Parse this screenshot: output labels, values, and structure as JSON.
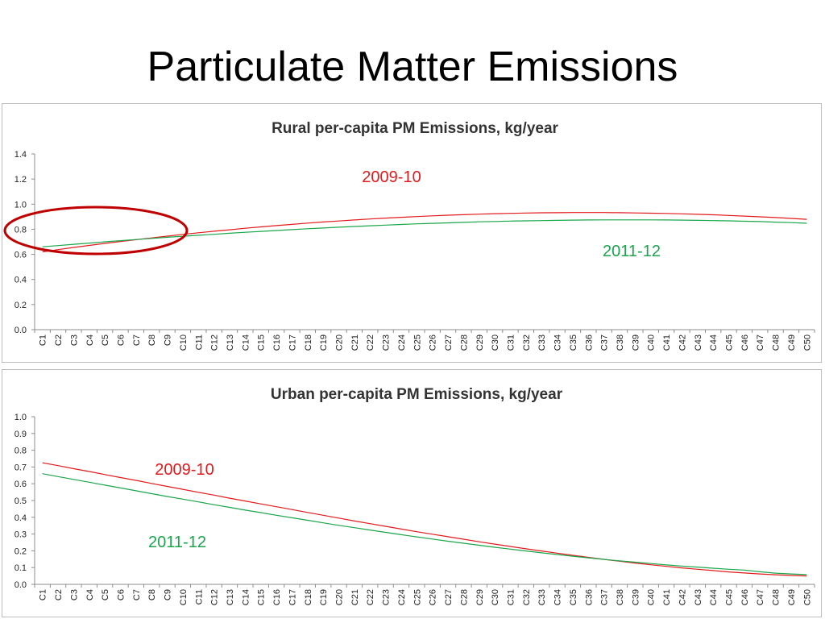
{
  "slide": {
    "title": "Particulate Matter Emissions"
  },
  "colors": {
    "series_2009_10": "#e31a1c",
    "series_2011_12": "#1aa64a",
    "highlight_ellipse": "#c00000",
    "axis": "#8c8c8c"
  },
  "chart_data": [
    {
      "type": "line",
      "title": "Rural per-capita PM Emissions, kg/year",
      "xlabel": "",
      "ylabel": "",
      "ylim": [
        0,
        1.4
      ],
      "yticks": [
        "0.0",
        "0.2",
        "0.4",
        "0.6",
        "0.8",
        "1.0",
        "1.2",
        "1.4"
      ],
      "categories": [
        "C1",
        "C2",
        "C3",
        "C4",
        "C5",
        "C6",
        "C7",
        "C8",
        "C9",
        "C10",
        "C11",
        "C12",
        "C13",
        "C14",
        "C15",
        "C16",
        "C17",
        "C18",
        "C19",
        "C20",
        "C21",
        "C22",
        "C23",
        "C24",
        "C25",
        "C26",
        "C27",
        "C28",
        "C29",
        "C30",
        "C31",
        "C32",
        "C33",
        "C34",
        "C35",
        "C36",
        "C37",
        "C38",
        "C39",
        "C40",
        "C41",
        "C42",
        "C43",
        "C44",
        "C45",
        "C46",
        "C47",
        "C48",
        "C49",
        "C50"
      ],
      "series": [
        {
          "name": "2009-10",
          "color": "#e31a1c",
          "values": [
            0.62,
            0.638,
            0.655,
            0.671,
            0.687,
            0.702,
            0.717,
            0.731,
            0.745,
            0.759,
            0.772,
            0.784,
            0.796,
            0.808,
            0.819,
            0.829,
            0.839,
            0.849,
            0.858,
            0.866,
            0.874,
            0.882,
            0.889,
            0.895,
            0.901,
            0.907,
            0.912,
            0.916,
            0.92,
            0.924,
            0.927,
            0.929,
            0.931,
            0.932,
            0.933,
            0.933,
            0.933,
            0.932,
            0.93,
            0.928,
            0.926,
            0.923,
            0.919,
            0.915,
            0.91,
            0.905,
            0.899,
            0.893,
            0.886,
            0.879
          ]
        },
        {
          "name": "2011-12",
          "color": "#1aa64a",
          "values": [
            0.66,
            0.67,
            0.68,
            0.69,
            0.7,
            0.709,
            0.718,
            0.727,
            0.736,
            0.744,
            0.752,
            0.76,
            0.768,
            0.776,
            0.783,
            0.79,
            0.797,
            0.804,
            0.81,
            0.816,
            0.822,
            0.828,
            0.833,
            0.838,
            0.843,
            0.847,
            0.851,
            0.855,
            0.859,
            0.862,
            0.865,
            0.867,
            0.869,
            0.871,
            0.873,
            0.874,
            0.875,
            0.875,
            0.875,
            0.875,
            0.874,
            0.873,
            0.871,
            0.869,
            0.867,
            0.864,
            0.861,
            0.857,
            0.853,
            0.848
          ]
        }
      ],
      "annotations": [
        {
          "text": "2009-10",
          "series": "2009-10"
        },
        {
          "text": "2011-12",
          "series": "2011-12"
        }
      ],
      "highlight": {
        "shape": "ellipse",
        "around": [
          "C1",
          "C9"
        ]
      }
    },
    {
      "type": "line",
      "title": "Urban per-capita PM Emissions, kg/year",
      "xlabel": "",
      "ylabel": "",
      "ylim": [
        0,
        1.0
      ],
      "yticks": [
        "0.0",
        "0.1",
        "0.2",
        "0.3",
        "0.4",
        "0.5",
        "0.6",
        "0.7",
        "0.8",
        "0.9",
        "1.0"
      ],
      "categories": [
        "C1",
        "C2",
        "C3",
        "C4",
        "C5",
        "C6",
        "C7",
        "C8",
        "C9",
        "C10",
        "C11",
        "C12",
        "C13",
        "C14",
        "C15",
        "C16",
        "C17",
        "C18",
        "C19",
        "C20",
        "C21",
        "C22",
        "C23",
        "C24",
        "C25",
        "C26",
        "C27",
        "C28",
        "C29",
        "C30",
        "C31",
        "C32",
        "C33",
        "C34",
        "C35",
        "C36",
        "C37",
        "C38",
        "C39",
        "C40",
        "C41",
        "C42",
        "C43",
        "C44",
        "C45",
        "C46",
        "C47",
        "C48",
        "C49",
        "C50"
      ],
      "series": [
        {
          "name": "2009-10",
          "color": "#e31a1c",
          "values": [
            0.725,
            0.708,
            0.69,
            0.673,
            0.655,
            0.637,
            0.62,
            0.602,
            0.584,
            0.567,
            0.549,
            0.532,
            0.514,
            0.497,
            0.48,
            0.463,
            0.446,
            0.429,
            0.412,
            0.395,
            0.378,
            0.362,
            0.346,
            0.33,
            0.314,
            0.299,
            0.284,
            0.269,
            0.254,
            0.24,
            0.226,
            0.212,
            0.199,
            0.186,
            0.173,
            0.161,
            0.149,
            0.138,
            0.127,
            0.117,
            0.107,
            0.098,
            0.09,
            0.082,
            0.074,
            0.068,
            0.062,
            0.057,
            0.053,
            0.05
          ]
        },
        {
          "name": "2011-12",
          "color": "#1aa64a",
          "values": [
            0.66,
            0.643,
            0.626,
            0.609,
            0.592,
            0.575,
            0.558,
            0.541,
            0.524,
            0.508,
            0.492,
            0.475,
            0.459,
            0.443,
            0.428,
            0.412,
            0.397,
            0.382,
            0.367,
            0.352,
            0.338,
            0.324,
            0.31,
            0.296,
            0.283,
            0.27,
            0.257,
            0.245,
            0.233,
            0.221,
            0.21,
            0.199,
            0.188,
            0.178,
            0.168,
            0.158,
            0.149,
            0.14,
            0.132,
            0.124,
            0.116,
            0.109,
            0.103,
            0.096,
            0.09,
            0.085,
            0.075,
            0.067,
            0.062,
            0.058
          ]
        }
      ],
      "annotations": [
        {
          "text": "2009-10",
          "series": "2009-10"
        },
        {
          "text": "2011-12",
          "series": "2011-12"
        }
      ]
    }
  ]
}
